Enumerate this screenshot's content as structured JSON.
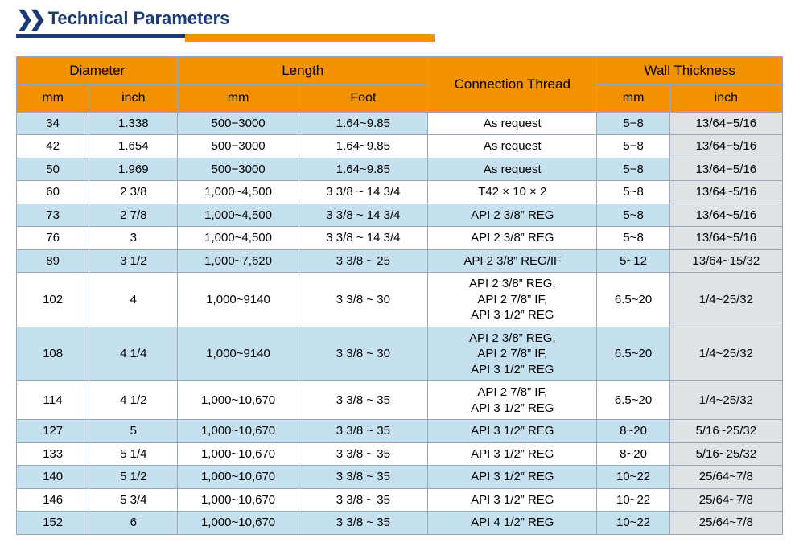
{
  "title": "Technical Parameters",
  "colors": {
    "accent_navy": "#1b3a7a",
    "accent_orange": "#f29200",
    "row_light_blue": "#c5e1f0",
    "row_white": "#ffffff",
    "row_grey": "#dfe3e6",
    "border": "#9aa7b5"
  },
  "table": {
    "group_headers": {
      "diameter": "Diameter",
      "length": "Length",
      "connection": "Connection Thread",
      "wall": "Wall Thickness"
    },
    "sub_headers": {
      "dia_mm": "mm",
      "dia_inch": "inch",
      "len_mm": "mm",
      "len_foot": "Foot",
      "wall_mm": "mm",
      "wall_inch": "inch"
    },
    "rows": [
      {
        "dia_mm": "34",
        "dia_in": "1.338",
        "len_mm": "500−3000",
        "len_ft": "1.64~9.85",
        "conn": "As request",
        "w_mm": "5−8",
        "w_in": "13/64−5/16",
        "bgDia": "lb",
        "bgLen": "lb",
        "bgConn": "wt",
        "bgW1": "lb",
        "bgW2": "gr"
      },
      {
        "dia_mm": "42",
        "dia_in": "1.654",
        "len_mm": "500−3000",
        "len_ft": "1.64~9.85",
        "conn": "As request",
        "w_mm": "5−8",
        "w_in": "13/64−5/16",
        "bgDia": "wt",
        "bgLen": "wt",
        "bgConn": "wt",
        "bgW1": "wt",
        "bgW2": "gr"
      },
      {
        "dia_mm": "50",
        "dia_in": "1.969",
        "len_mm": "500−3000",
        "len_ft": "1.64~9.85",
        "conn": "As request",
        "w_mm": "5−8",
        "w_in": "13/64−5/16",
        "bgDia": "lb",
        "bgLen": "lb",
        "bgConn": "lb",
        "bgW1": "lb",
        "bgW2": "gr"
      },
      {
        "dia_mm": "60",
        "dia_in": "2 3/8",
        "len_mm": "1,000~4,500",
        "len_ft": "3 3/8 ~ 14 3/4",
        "conn": "T42 × 10 × 2",
        "w_mm": "5~8",
        "w_in": "13/64~5/16",
        "bgDia": "wt",
        "bgLen": "wt",
        "bgConn": "wt",
        "bgW1": "wt",
        "bgW2": "gr"
      },
      {
        "dia_mm": "73",
        "dia_in": "2 7/8",
        "len_mm": "1,000~4,500",
        "len_ft": "3 3/8 ~ 14 3/4",
        "conn": "API 2 3/8” REG",
        "w_mm": "5~8",
        "w_in": "13/64~5/16",
        "bgDia": "lb",
        "bgLen": "lb",
        "bgConn": "lb",
        "bgW1": "lb",
        "bgW2": "gr"
      },
      {
        "dia_mm": "76",
        "dia_in": "3",
        "len_mm": "1,000~4,500",
        "len_ft": "3 3/8 ~ 14 3/4",
        "conn": "API 2 3/8” REG",
        "w_mm": "5~8",
        "w_in": "13/64~5/16",
        "bgDia": "wt",
        "bgLen": "wt",
        "bgConn": "wt",
        "bgW1": "wt",
        "bgW2": "gr"
      },
      {
        "dia_mm": "89",
        "dia_in": "3 1/2",
        "len_mm": "1,000~7,620",
        "len_ft": "3 3/8 ~ 25",
        "conn": "API 2 3/8” REG/IF",
        "w_mm": "5~12",
        "w_in": "13/64~15/32",
        "bgDia": "lb",
        "bgLen": "lb",
        "bgConn": "lb",
        "bgW1": "lb",
        "bgW2": "gr"
      },
      {
        "dia_mm": "102",
        "dia_in": "4",
        "len_mm": "1,000~9140",
        "len_ft": "3 3/8 ~ 30",
        "conn": "API 2 3/8” REG,\nAPI 2 7/8” IF,\nAPI 3 1/2” REG",
        "w_mm": "6.5~20",
        "w_in": "1/4~25/32",
        "bgDia": "wt",
        "bgLen": "wt",
        "bgConn": "wt",
        "bgW1": "wt",
        "bgW2": "gr"
      },
      {
        "dia_mm": "108",
        "dia_in": "4 1/4",
        "len_mm": "1,000~9140",
        "len_ft": "3 3/8 ~ 30",
        "conn": "API 2 3/8” REG,\nAPI 2 7/8” IF,\nAPI 3 1/2” REG",
        "w_mm": "6.5~20",
        "w_in": "1/4~25/32",
        "bgDia": "lb",
        "bgLen": "lb",
        "bgConn": "lb",
        "bgW1": "lb",
        "bgW2": "gr"
      },
      {
        "dia_mm": "114",
        "dia_in": "4 1/2",
        "len_mm": "1,000~10,670",
        "len_ft": "3 3/8 ~ 35",
        "conn": "API 2 7/8” IF,\nAPI 3 1/2” REG",
        "w_mm": "6.5~20",
        "w_in": "1/4~25/32",
        "bgDia": "wt",
        "bgLen": "wt",
        "bgConn": "wt",
        "bgW1": "wt",
        "bgW2": "gr"
      },
      {
        "dia_mm": "127",
        "dia_in": "5",
        "len_mm": "1,000~10,670",
        "len_ft": "3 3/8 ~ 35",
        "conn": "API 3 1/2” REG",
        "w_mm": "8~20",
        "w_in": "5/16~25/32",
        "bgDia": "lb",
        "bgLen": "lb",
        "bgConn": "lb",
        "bgW1": "lb",
        "bgW2": "gr"
      },
      {
        "dia_mm": "133",
        "dia_in": "5 1/4",
        "len_mm": "1,000~10,670",
        "len_ft": "3 3/8 ~ 35",
        "conn": "API 3 1/2” REG",
        "w_mm": "8~20",
        "w_in": "5/16~25/32",
        "bgDia": "wt",
        "bgLen": "wt",
        "bgConn": "wt",
        "bgW1": "wt",
        "bgW2": "gr"
      },
      {
        "dia_mm": "140",
        "dia_in": "5 1/2",
        "len_mm": "1,000~10,670",
        "len_ft": "3 3/8 ~ 35",
        "conn": "API 3 1/2” REG",
        "w_mm": "10~22",
        "w_in": "25/64~7/8",
        "bgDia": "lb",
        "bgLen": "lb",
        "bgConn": "lb",
        "bgW1": "lb",
        "bgW2": "gr"
      },
      {
        "dia_mm": "146",
        "dia_in": "5 3/4",
        "len_mm": "1,000~10,670",
        "len_ft": "3 3/8 ~ 35",
        "conn": "API 3 1/2” REG",
        "w_mm": "10~22",
        "w_in": "25/64~7/8",
        "bgDia": "wt",
        "bgLen": "wt",
        "bgConn": "wt",
        "bgW1": "wt",
        "bgW2": "gr"
      },
      {
        "dia_mm": "152",
        "dia_in": "6",
        "len_mm": "1,000~10,670",
        "len_ft": "3 3/8 ~ 35",
        "conn": "API 4 1/2” REG",
        "w_mm": "10~22",
        "w_in": "25/64~7/8",
        "bgDia": "lb",
        "bgLen": "lb",
        "bgConn": "lb",
        "bgW1": "lb",
        "bgW2": "gr"
      }
    ]
  }
}
